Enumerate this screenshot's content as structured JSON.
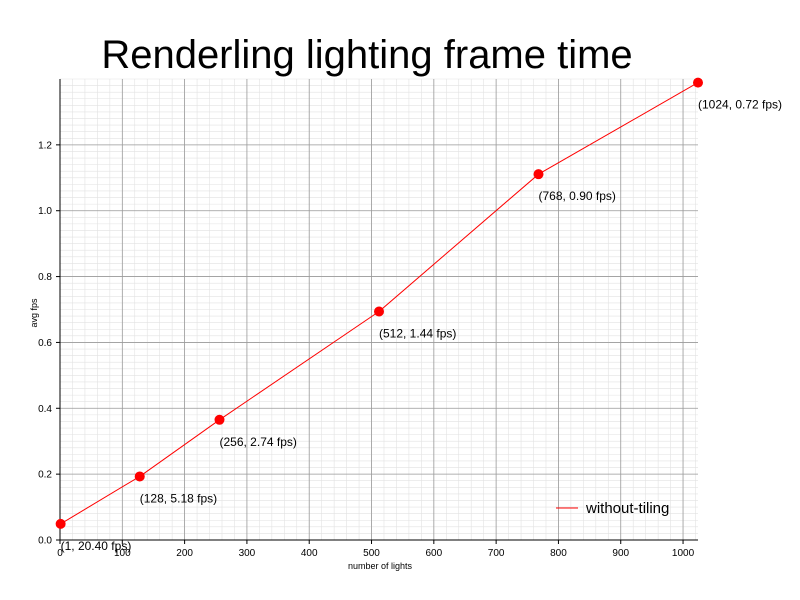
{
  "chart_data": {
    "type": "line",
    "title": "Renderling lighting frame time",
    "xlabel": "number of lights",
    "ylabel": "avg fps",
    "xlim": [
      0,
      1024
    ],
    "ylim": [
      0,
      1.4
    ],
    "xticks": [
      0,
      100,
      200,
      300,
      400,
      500,
      600,
      700,
      800,
      900,
      1000
    ],
    "yticks": [
      "0.0",
      "0.2",
      "0.4",
      "0.6",
      "0.8",
      "1.0",
      "1.2"
    ],
    "grid": true,
    "legend_position": "bottom-right",
    "series": [
      {
        "name": "without-tiling",
        "color": "#ff0000",
        "points": [
          {
            "x": 1,
            "y": 0.049,
            "label": "(1, 20.40 fps)"
          },
          {
            "x": 128,
            "y": 0.193,
            "label": "(128, 5.18 fps)"
          },
          {
            "x": 256,
            "y": 0.365,
            "label": "(256, 2.74 fps)"
          },
          {
            "x": 512,
            "y": 0.694,
            "label": "(512, 1.44 fps)"
          },
          {
            "x": 768,
            "y": 1.111,
            "label": "(768, 0.90 fps)"
          },
          {
            "x": 1024,
            "y": 1.389,
            "label": "(1024, 0.72 fps)"
          }
        ]
      }
    ]
  }
}
